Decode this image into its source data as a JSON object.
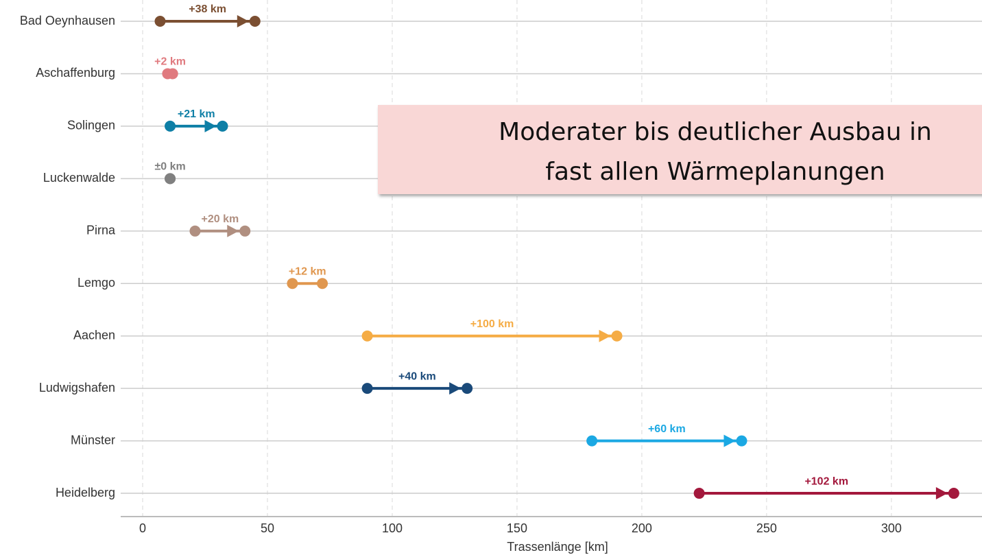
{
  "chart_data": {
    "type": "dumbbell",
    "categories": [
      "Bad Oeynhausen",
      "Aschaffenburg",
      "Solingen",
      "Luckenwalde",
      "Pirna",
      "Lemgo",
      "Aachen",
      "Ludwigshafen",
      "Münster",
      "Heidelberg"
    ],
    "start": [
      7,
      10,
      11,
      11,
      21,
      60,
      90,
      90,
      180,
      223
    ],
    "end": [
      45,
      12,
      32,
      11,
      41,
      72,
      190,
      130,
      240,
      325
    ],
    "change": [
      38,
      2,
      21,
      0,
      20,
      12,
      100,
      40,
      60,
      102
    ],
    "change_labels": [
      "+38 km",
      "+2 km",
      "+21 km",
      "±0 km",
      "+20 km",
      "+12 km",
      "+100 km",
      "+40 km",
      "+60 km",
      "+102 km"
    ],
    "colors": [
      "#7b4f32",
      "#e07a7f",
      "#0e7fa6",
      "#808080",
      "#b08f80",
      "#e0974f",
      "#f5ac45",
      "#1a4a7a",
      "#1ba8e3",
      "#a3183c"
    ],
    "xlabel": "Trassenlänge [km]",
    "xlim": [
      -8.8,
      336.3
    ],
    "xticks": [
      0,
      50,
      100,
      150,
      200,
      250,
      300
    ],
    "grid": true,
    "annotation": [
      "Moderater bis deutlicher Ausbau in",
      "fast allen Wärmeplanungen"
    ]
  }
}
